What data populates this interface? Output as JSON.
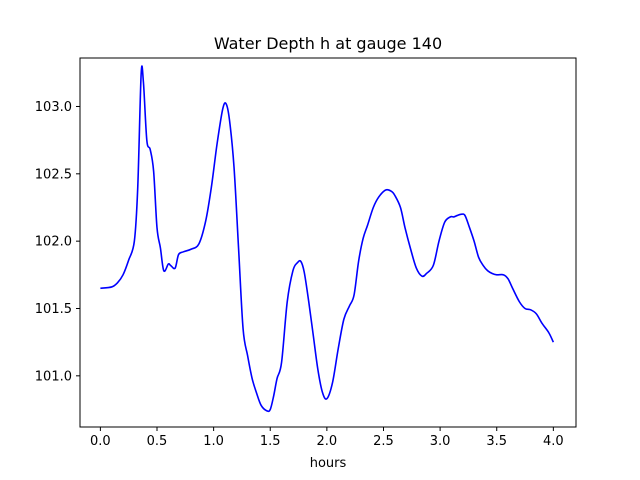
{
  "chart_data": {
    "type": "line",
    "title": "Water Depth h at gauge 140",
    "xlabel": "hours",
    "ylabel": "",
    "xlim": [
      -0.18,
      4.2
    ],
    "ylim": [
      100.62,
      103.36
    ],
    "grid": false,
    "legend": "none",
    "x_ticks": [
      0.0,
      0.5,
      1.0,
      1.5,
      2.0,
      2.5,
      3.0,
      3.5,
      4.0
    ],
    "x_tick_labels": [
      "0.0",
      "0.5",
      "1.0",
      "1.5",
      "2.0",
      "2.5",
      "3.0",
      "3.5",
      "4.0"
    ],
    "y_ticks": [
      101.0,
      101.5,
      102.0,
      102.5,
      103.0
    ],
    "y_tick_labels": [
      "101.0",
      "101.5",
      "102.0",
      "102.5",
      "103.0"
    ],
    "colors": {
      "line": "#0000ff"
    },
    "series": [
      {
        "x": [
          0.0,
          0.1,
          0.15,
          0.2,
          0.25,
          0.3,
          0.33,
          0.36,
          0.38,
          0.41,
          0.44,
          0.47,
          0.5,
          0.53,
          0.56,
          0.6,
          0.62,
          0.66,
          0.69,
          0.73,
          0.8,
          0.87,
          0.93,
          0.98,
          1.03,
          1.08,
          1.11,
          1.14,
          1.18,
          1.22,
          1.26,
          1.3,
          1.34,
          1.38,
          1.42,
          1.47,
          1.5,
          1.53,
          1.56,
          1.6,
          1.65,
          1.7,
          1.74,
          1.77,
          1.8,
          1.84,
          1.88,
          1.92,
          1.96,
          2.0,
          2.05,
          2.1,
          2.15,
          2.2,
          2.24,
          2.28,
          2.32,
          2.36,
          2.41,
          2.46,
          2.52,
          2.57,
          2.6,
          2.65,
          2.69,
          2.74,
          2.79,
          2.84,
          2.88,
          2.94,
          2.99,
          3.04,
          3.09,
          3.12,
          3.15,
          3.19,
          3.22,
          3.26,
          3.3,
          3.34,
          3.38,
          3.42,
          3.46,
          3.5,
          3.56,
          3.6,
          3.64,
          3.7,
          3.75,
          3.8,
          3.85,
          3.9,
          3.96,
          4.0
        ],
        "y": [
          101.65,
          101.66,
          101.69,
          101.75,
          101.86,
          102.0,
          102.4,
          103.24,
          103.18,
          102.75,
          102.68,
          102.52,
          102.1,
          101.95,
          101.78,
          101.83,
          101.82,
          101.8,
          101.9,
          101.92,
          101.94,
          101.98,
          102.15,
          102.4,
          102.72,
          102.98,
          103.02,
          102.9,
          102.55,
          101.95,
          101.35,
          101.15,
          100.98,
          100.87,
          100.78,
          100.74,
          100.75,
          100.85,
          100.98,
          101.1,
          101.55,
          101.78,
          101.84,
          101.85,
          101.77,
          101.55,
          101.3,
          101.05,
          100.88,
          100.83,
          100.95,
          101.2,
          101.42,
          101.52,
          101.6,
          101.85,
          102.02,
          102.12,
          102.25,
          102.33,
          102.38,
          102.37,
          102.34,
          102.25,
          102.1,
          101.94,
          101.8,
          101.74,
          101.76,
          101.82,
          102.0,
          102.14,
          102.18,
          102.18,
          102.19,
          102.2,
          102.19,
          102.1,
          102.0,
          101.88,
          101.82,
          101.78,
          101.76,
          101.75,
          101.75,
          101.72,
          101.65,
          101.55,
          101.5,
          101.49,
          101.46,
          101.39,
          101.32,
          101.25
        ]
      }
    ]
  }
}
